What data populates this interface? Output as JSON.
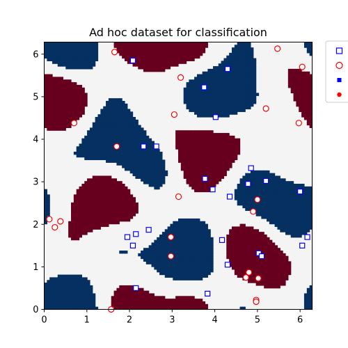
{
  "chart_data": {
    "type": "scatter",
    "title": "Ad hoc dataset for classification",
    "xlabel": "",
    "ylabel": "",
    "xlim": [
      0,
      6.283
    ],
    "ylim": [
      0,
      6.283
    ],
    "x_ticks": [
      0,
      1,
      2,
      3,
      4,
      5,
      6
    ],
    "y_ticks": [
      0,
      1,
      2,
      3,
      4,
      5,
      6
    ],
    "grid": false,
    "legend_position": "outside-top-right",
    "legend_entries": [
      "",
      "",
      "",
      ""
    ],
    "background": {
      "kind": "class-region map",
      "resolution": 100,
      "colors": {
        "class_a": "#053061",
        "class_b": "#67001f",
        "neutral": "#f4f4f4"
      }
    },
    "colors": {
      "square_edge": "#0000ff",
      "circle_edge": "#ff0000",
      "square_fill": "#0000ff",
      "circle_fill": "#ff0000"
    },
    "series": [
      {
        "marker": "square-hollow",
        "points": [
          [
            2.08,
            5.85
          ],
          [
            4.3,
            5.65
          ],
          [
            3.75,
            5.22
          ],
          [
            4.02,
            4.52
          ],
          [
            2.33,
            3.83
          ],
          [
            2.63,
            3.83
          ],
          [
            4.85,
            3.32
          ],
          [
            3.77,
            3.07
          ],
          [
            4.78,
            2.95
          ],
          [
            5.2,
            3.02
          ],
          [
            3.95,
            2.82
          ],
          [
            4.35,
            2.65
          ],
          [
            6.0,
            2.77
          ],
          [
            1.95,
            1.7
          ],
          [
            2.15,
            1.77
          ],
          [
            2.45,
            1.87
          ],
          [
            2.08,
            1.5
          ],
          [
            4.17,
            1.63
          ],
          [
            6.17,
            1.7
          ],
          [
            6.05,
            1.5
          ],
          [
            5.03,
            1.32
          ],
          [
            5.1,
            1.25
          ],
          [
            4.3,
            1.05
          ],
          [
            2.15,
            0.5
          ],
          [
            3.83,
            0.37
          ]
        ]
      },
      {
        "marker": "circle-hollow",
        "points": [
          [
            1.65,
            6.05
          ],
          [
            5.47,
            6.13
          ],
          [
            6.05,
            5.7
          ],
          [
            3.2,
            5.45
          ],
          [
            5.2,
            4.72
          ],
          [
            3.05,
            4.58
          ],
          [
            0.7,
            4.38
          ],
          [
            5.97,
            4.38
          ],
          [
            1.7,
            3.83
          ],
          [
            3.15,
            2.65
          ],
          [
            5.0,
            2.58
          ],
          [
            4.9,
            2.3
          ],
          [
            0.12,
            2.12
          ],
          [
            0.38,
            2.07
          ],
          [
            0.25,
            1.93
          ],
          [
            2.97,
            1.7
          ],
          [
            2.97,
            1.25
          ],
          [
            4.8,
            0.87
          ],
          [
            4.73,
            0.75
          ],
          [
            5.02,
            0.73
          ],
          [
            4.97,
            0.22
          ],
          [
            4.97,
            0.18
          ],
          [
            1.57,
            0.0
          ]
        ]
      }
    ]
  }
}
